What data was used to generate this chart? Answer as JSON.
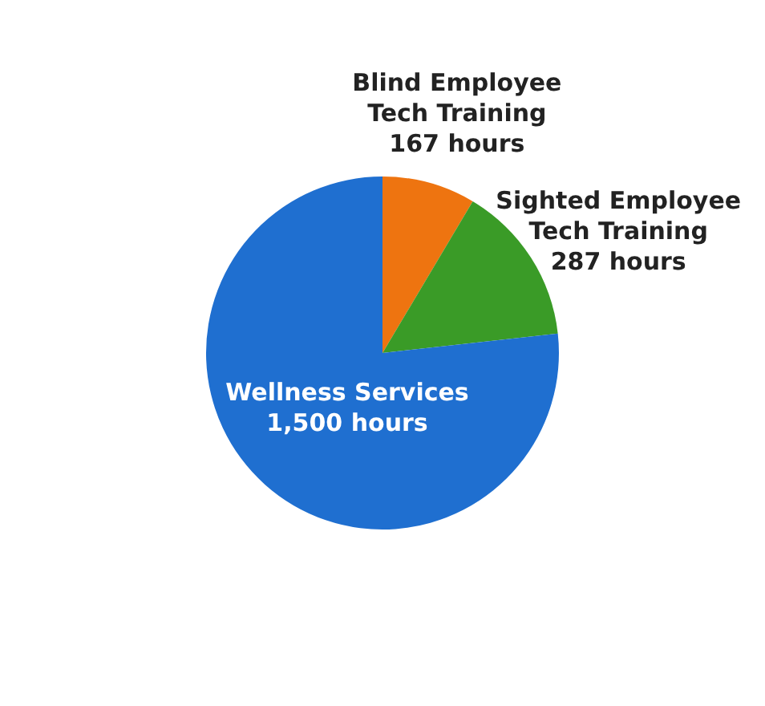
{
  "chart_data": {
    "type": "pie",
    "categories": [
      "Blind Employee Tech Training",
      "Sighted Employee Tech Training",
      "Wellness Services"
    ],
    "values": [
      167,
      287,
      1500
    ],
    "colors": [
      "#ee7410",
      "#3a9b27",
      "#1f6fd0"
    ],
    "value_labels": [
      "167 hours",
      "287 hours",
      "1,500 hours"
    ]
  }
}
